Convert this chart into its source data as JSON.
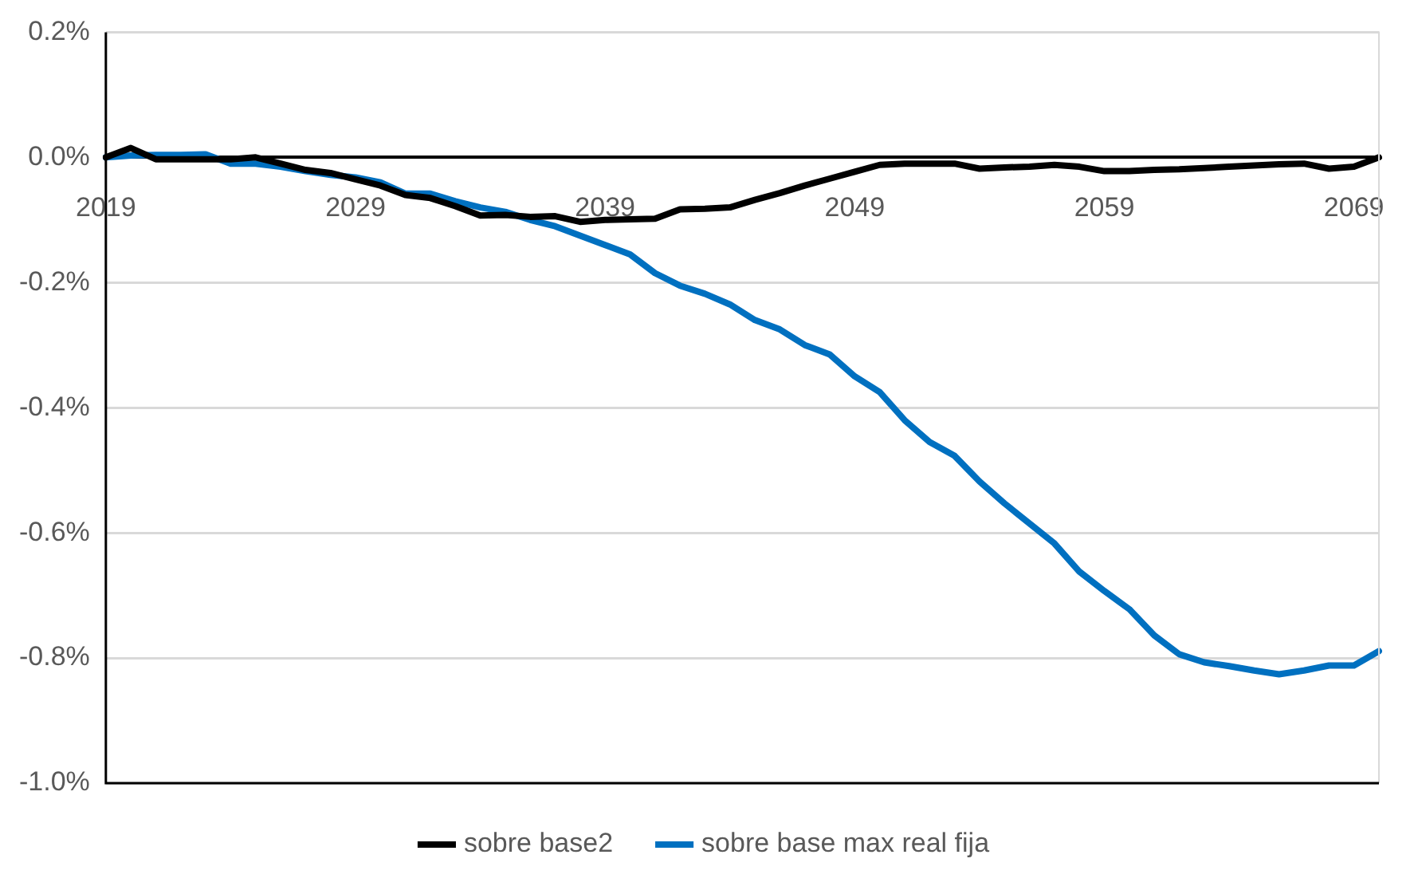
{
  "chart_data": {
    "type": "line",
    "categories": [
      "2019",
      null,
      null,
      null,
      null,
      null,
      null,
      null,
      null,
      null,
      "2029",
      null,
      null,
      null,
      null,
      null,
      null,
      null,
      null,
      null,
      "2039",
      null,
      null,
      null,
      null,
      null,
      null,
      null,
      null,
      null,
      "2049",
      null,
      null,
      null,
      null,
      null,
      null,
      null,
      null,
      null,
      "2059",
      null,
      null,
      null,
      null,
      null,
      null,
      null,
      null,
      null,
      "2069",
      null
    ],
    "series": [
      {
        "name": "sobre base2",
        "color": "#000000",
        "values": [
          0,
          0.015,
          -0.003,
          -0.003,
          -0.003,
          -0.003,
          0,
          -0.01,
          -0.02,
          -0.025,
          -0.035,
          -0.045,
          -0.06,
          -0.065,
          -0.078,
          -0.093,
          -0.092,
          -0.095,
          -0.094,
          -0.103,
          -0.1,
          -0.099,
          -0.098,
          -0.083,
          -0.082,
          -0.08,
          -0.068,
          -0.057,
          -0.045,
          -0.034,
          -0.023,
          -0.012,
          -0.01,
          -0.01,
          -0.01,
          -0.018,
          -0.016,
          -0.015,
          -0.012,
          -0.015,
          -0.022,
          -0.022,
          -0.02,
          -0.019,
          -0.017,
          -0.015,
          -0.013,
          -0.011,
          -0.01,
          -0.018,
          -0.015,
          0
        ]
      },
      {
        "name": "sobre base max real fija",
        "color": "#0070c0",
        "values": [
          0,
          0.003,
          0.004,
          0.004,
          0.005,
          -0.01,
          -0.01,
          -0.015,
          -0.022,
          -0.028,
          -0.032,
          -0.04,
          -0.058,
          -0.058,
          -0.07,
          -0.08,
          -0.087,
          -0.1,
          -0.11,
          -0.125,
          -0.14,
          -0.155,
          -0.185,
          -0.205,
          -0.218,
          -0.235,
          -0.26,
          -0.275,
          -0.3,
          -0.315,
          -0.35,
          -0.375,
          -0.42,
          -0.455,
          -0.477,
          -0.518,
          -0.553,
          -0.585,
          -0.617,
          -0.662,
          -0.693,
          -0.722,
          -0.764,
          -0.794,
          -0.807,
          -0.813,
          -0.82,
          -0.826,
          -0.82,
          -0.812,
          -0.812,
          -0.789
        ]
      }
    ],
    "ylim": [
      -1.0,
      0.2
    ],
    "yticks": [
      {
        "value": -1.0,
        "label": "-1.0%"
      },
      {
        "value": -0.8,
        "label": "-0.8%"
      },
      {
        "value": -0.6,
        "label": "-0.6%"
      },
      {
        "value": -0.4,
        "label": "-0.4%"
      },
      {
        "value": -0.2,
        "label": "-0.2%"
      },
      {
        "value": 0,
        "label": "0.0%"
      },
      {
        "value": 0.2,
        "label": "0.2%"
      }
    ],
    "grid": "y",
    "legend": "bottom",
    "marker": "none",
    "line_style": "solid"
  }
}
